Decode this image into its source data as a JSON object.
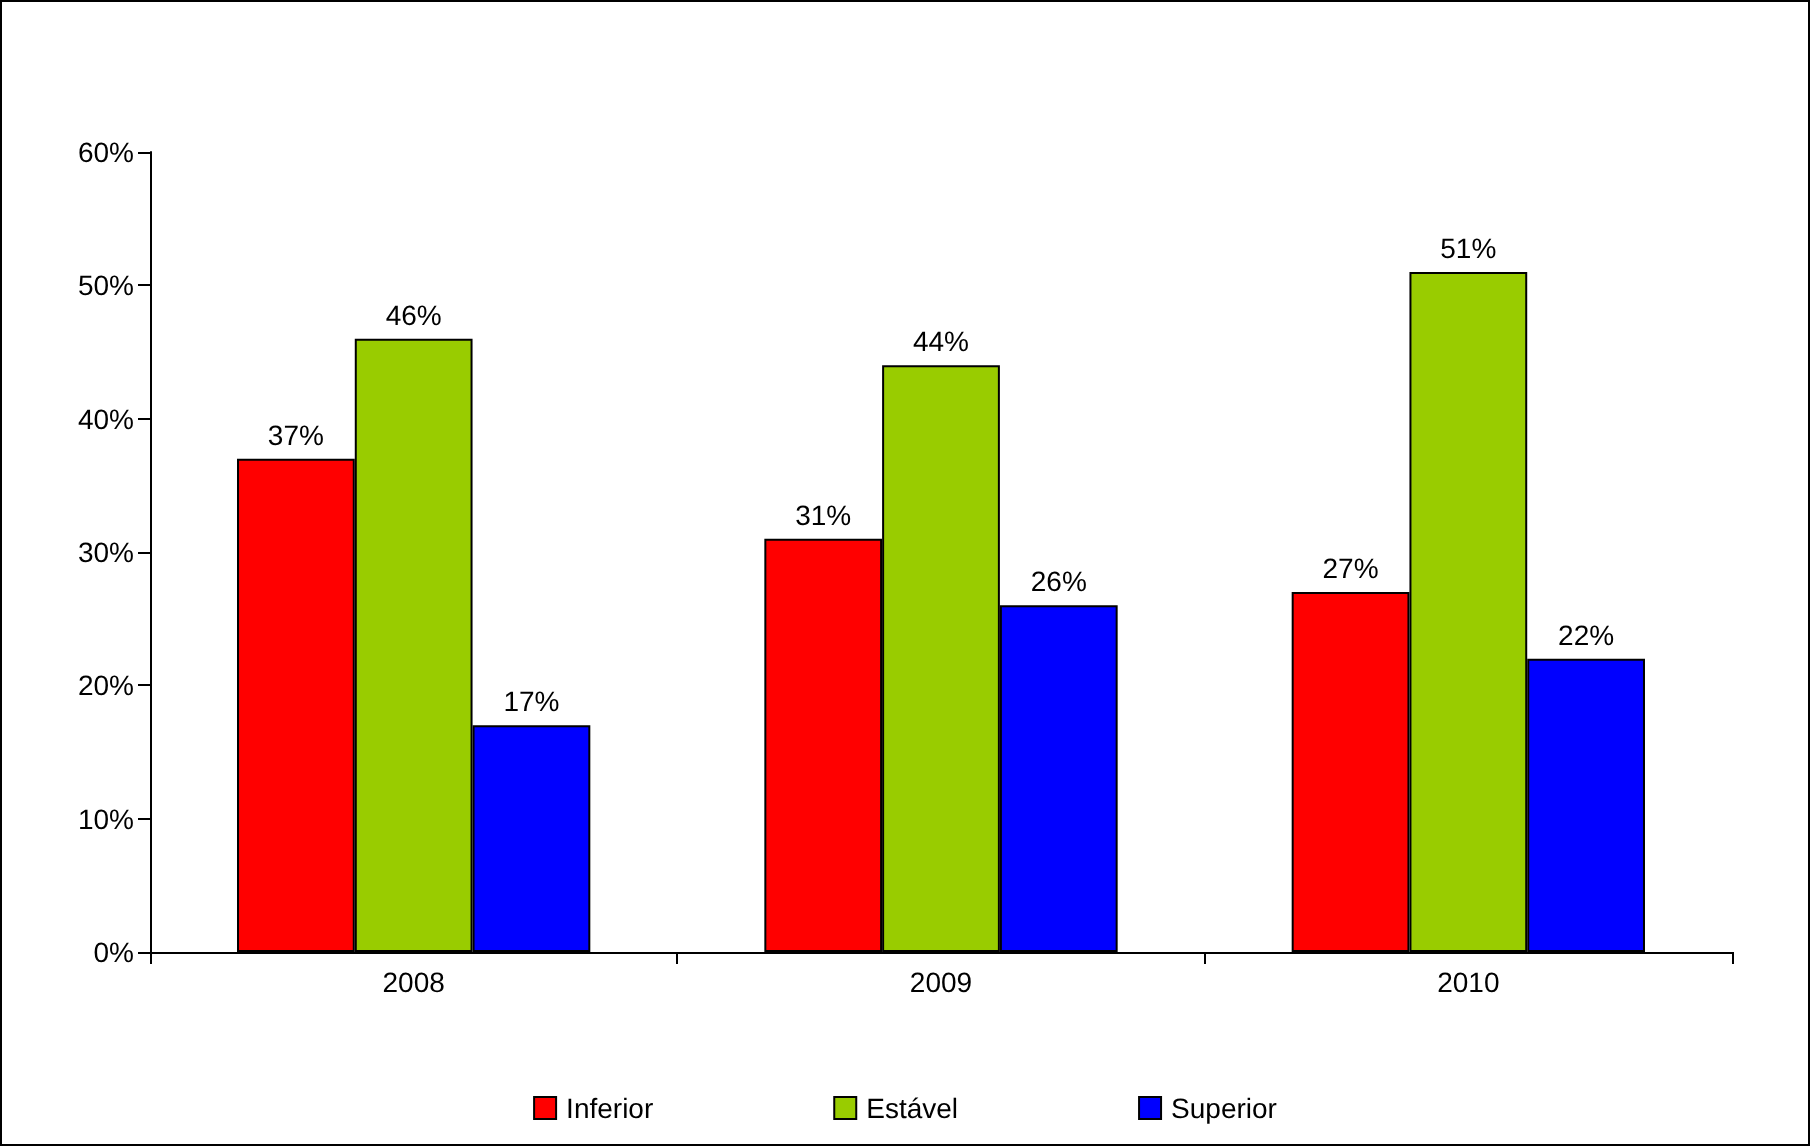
{
  "chart_data": {
    "type": "bar",
    "categories": [
      "2008",
      "2009",
      "2010"
    ],
    "series": [
      {
        "name": "Inferior",
        "color": "#ff0000",
        "values": [
          37,
          31,
          27
        ],
        "value_labels": [
          "37%",
          "31%",
          "27%"
        ]
      },
      {
        "name": "Estável",
        "color": "#99cc00",
        "values": [
          46,
          44,
          51
        ],
        "value_labels": [
          "46%",
          "44%",
          "51%"
        ]
      },
      {
        "name": "Superior",
        "color": "#0000ff",
        "values": [
          17,
          26,
          22
        ],
        "value_labels": [
          "17%",
          "26%",
          "22%"
        ]
      }
    ],
    "ylim": [
      0,
      60
    ],
    "yticks": [
      {
        "value": 0,
        "label": "0%"
      },
      {
        "value": 10,
        "label": "10%"
      },
      {
        "value": 20,
        "label": "20%"
      },
      {
        "value": 30,
        "label": "30%"
      },
      {
        "value": 40,
        "label": "40%"
      },
      {
        "value": 50,
        "label": "50%"
      },
      {
        "value": 60,
        "label": "60%"
      }
    ],
    "grid": false,
    "legend": "bottom"
  }
}
